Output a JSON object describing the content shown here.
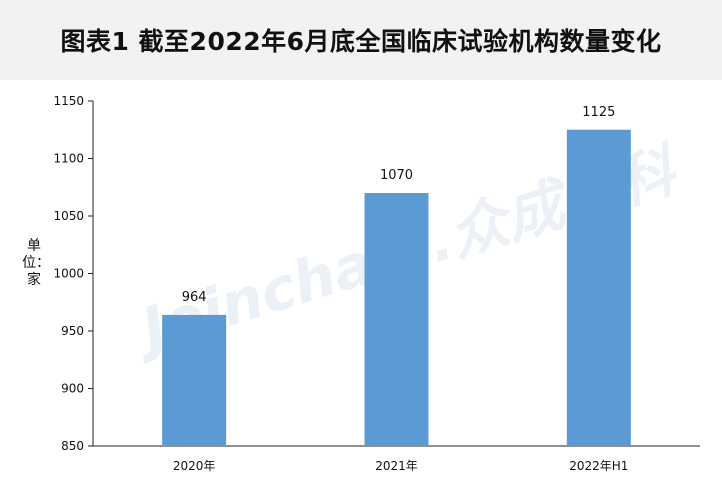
{
  "chart_data": {
    "type": "bar",
    "title": "图表1  截至2022年6月底全国临床试验机构数量变化",
    "ylabel": "单位：家",
    "xlabel": "",
    "categories": [
      "2020年",
      "2021年",
      "2022年H1"
    ],
    "values": [
      964,
      1070,
      1125
    ],
    "ylim": [
      850,
      1150
    ],
    "yticks": [
      850,
      900,
      950,
      1000,
      1050,
      1100,
      1150
    ],
    "bar_color": "#5b9bd5",
    "grid": false,
    "watermark": "Joinchain.众成数科"
  }
}
